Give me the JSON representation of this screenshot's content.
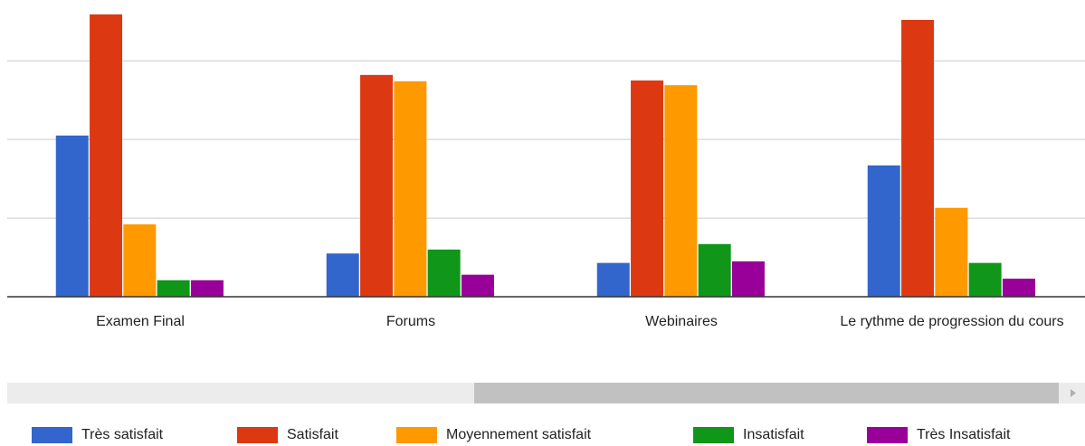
{
  "chart_data": {
    "type": "bar",
    "categories": [
      "Examen Final",
      "Forums",
      "Webinaires",
      "Le rythme de progression du cours"
    ],
    "series": [
      {
        "name": "Très satisfait",
        "color": "#3366cc",
        "values": [
          20.5,
          5.5,
          4.3,
          16.7
        ]
      },
      {
        "name": "Satisfait",
        "color": "#dc3912",
        "values": [
          35.9,
          28.2,
          27.5,
          35.2
        ]
      },
      {
        "name": "Moyennement satisfait",
        "color": "#ff9900",
        "values": [
          9.2,
          27.4,
          26.9,
          11.3
        ]
      },
      {
        "name": "Insatisfait",
        "color": "#109618",
        "values": [
          2.1,
          6.0,
          6.7,
          4.3
        ]
      },
      {
        "name": "Très Insatisfait",
        "color": "#990099",
        "values": [
          2.1,
          2.8,
          4.5,
          2.3
        ]
      }
    ],
    "ylim": [
      0,
      37.5
    ],
    "yticks": [
      0,
      10,
      20,
      30
    ],
    "grid": true,
    "legend": "bottom"
  }
}
